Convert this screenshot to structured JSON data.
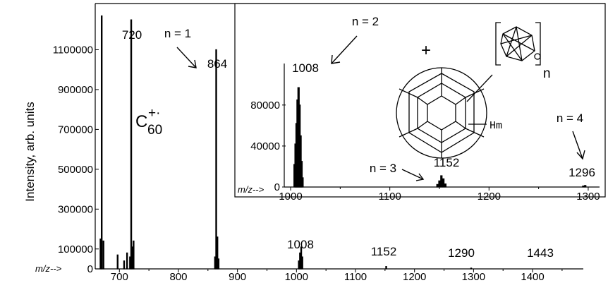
{
  "chart_data": [
    {
      "id": "main",
      "type": "bar",
      "ylabel": "Intensity, arb. units",
      "x_axis_prefix": "m/z-->",
      "xlim": [
        665,
        1480
      ],
      "ylim": [
        0,
        1300000
      ],
      "xticks": [
        700,
        800,
        900,
        1000,
        1100,
        1200,
        1300,
        1400
      ],
      "yticks": [
        0,
        100000,
        300000,
        500000,
        700000,
        900000,
        1100000
      ],
      "ytick_labels": [
        "0",
        "100000",
        "300000",
        "500000",
        "700000",
        "900000",
        "1100000"
      ],
      "peaks": [
        {
          "x": 668,
          "y": 150000
        },
        {
          "x": 670,
          "y": 1270000
        },
        {
          "x": 673,
          "y": 140000
        },
        {
          "x": 697,
          "y": 70000
        },
        {
          "x": 708,
          "y": 40000
        },
        {
          "x": 713,
          "y": 80000
        },
        {
          "x": 718,
          "y": 60000
        },
        {
          "x": 720,
          "y": 1250000
        },
        {
          "x": 722,
          "y": 110000
        },
        {
          "x": 724,
          "y": 140000
        },
        {
          "x": 862,
          "y": 60000
        },
        {
          "x": 864,
          "y": 1100000
        },
        {
          "x": 866,
          "y": 160000
        },
        {
          "x": 868,
          "y": 50000
        },
        {
          "x": 1004,
          "y": 40000
        },
        {
          "x": 1006,
          "y": 80000
        },
        {
          "x": 1008,
          "y": 110000
        },
        {
          "x": 1010,
          "y": 60000
        },
        {
          "x": 1152,
          "y": 12000
        },
        {
          "x": 1296,
          "y": 4000
        }
      ],
      "annotations": {
        "c60": "C",
        "c60_charge": "+·",
        "c60_subscript": "60",
        "peak_720": "720",
        "peak_864": "864",
        "peak_1008": "1008",
        "peak_1152": "1152",
        "peak_1290": "1290",
        "peak_1443": "1443",
        "n1": "n = 1"
      }
    },
    {
      "id": "inset",
      "type": "bar",
      "x_axis_prefix": "m/z-->",
      "xlim": [
        995,
        1310
      ],
      "ylim": [
        0,
        115000
      ],
      "xticks": [
        1000,
        1100,
        1200,
        1300
      ],
      "xtick_labels": [
        "1000",
        "1100",
        "1200",
        "1300"
      ],
      "yticks": [
        0,
        40000,
        80000
      ],
      "ytick_labels": [
        "0",
        "40000",
        "80000"
      ],
      "peaks": [
        {
          "x": 1004,
          "y": 22000
        },
        {
          "x": 1005,
          "y": 42000
        },
        {
          "x": 1006,
          "y": 62000
        },
        {
          "x": 1007,
          "y": 85000
        },
        {
          "x": 1008,
          "y": 97000
        },
        {
          "x": 1009,
          "y": 80000
        },
        {
          "x": 1010,
          "y": 50000
        },
        {
          "x": 1011,
          "y": 25000
        },
        {
          "x": 1012,
          "y": 9000
        },
        {
          "x": 1148,
          "y": 2500
        },
        {
          "x": 1150,
          "y": 6000
        },
        {
          "x": 1152,
          "y": 11000
        },
        {
          "x": 1154,
          "y": 8000
        },
        {
          "x": 1156,
          "y": 3000
        },
        {
          "x": 1295,
          "y": 1000
        },
        {
          "x": 1297,
          "y": 1500
        }
      ],
      "annotations": {
        "peak_1008": "1008",
        "peak_1152": "1152",
        "peak_1296": "1296",
        "n2": "n = 2",
        "n3": "n = 3",
        "n4": "n = 4",
        "plus": "+",
        "n_subscript": "n",
        "hm": "Hm"
      }
    }
  ]
}
